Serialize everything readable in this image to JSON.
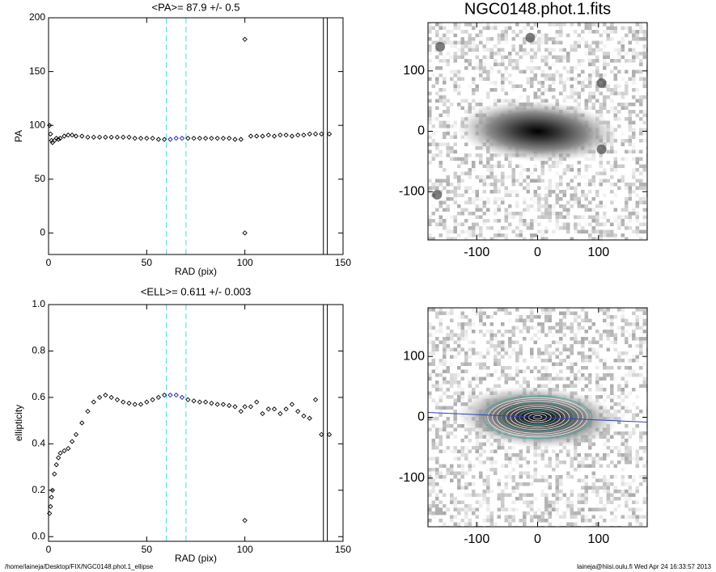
{
  "chart_data": [
    {
      "type": "scatter",
      "title": "<PA>=  87.9 +/-   0.5",
      "x_label": "RAD (pix)",
      "y_label": "PA",
      "x": [
        0.5,
        1,
        1.5,
        2,
        3,
        4,
        5,
        6,
        8,
        10,
        12,
        14,
        17,
        20,
        23,
        26,
        29,
        32,
        35,
        38,
        41,
        44,
        47,
        50,
        53,
        56,
        59,
        62,
        65,
        68,
        71,
        74,
        77,
        80,
        83,
        86,
        89,
        92,
        95,
        98,
        100,
        100,
        103,
        106,
        109,
        112,
        115,
        118,
        121,
        124,
        127,
        130,
        133,
        136,
        139,
        143
      ],
      "values": [
        100,
        92,
        86,
        84,
        86,
        88,
        87,
        88,
        90,
        91,
        91,
        90,
        90,
        89,
        89,
        89,
        89,
        89,
        89,
        89,
        89,
        88,
        88,
        88,
        88,
        87,
        87,
        87,
        88,
        88,
        88,
        88,
        88,
        88,
        88,
        88,
        88,
        88,
        87,
        87,
        180,
        0,
        90,
        90,
        90,
        91,
        90,
        91,
        91,
        90,
        91,
        91,
        92,
        92,
        92,
        92
      ],
      "color": "#000000",
      "highlight_color": "#1a1aa8",
      "range_lines": [
        60,
        70
      ],
      "range_color": "#40e0e0",
      "limit_lines": [
        140,
        142
      ],
      "xlim": [
        0,
        150
      ],
      "xticks": [
        0,
        50,
        100,
        150
      ],
      "ylim": [
        -20,
        200
      ],
      "yticks": [
        0,
        50,
        100,
        150,
        200
      ]
    },
    {
      "type": "scatter",
      "title": "<ELL>= 0.611 +/-  0.003",
      "x_label": "RAD (pix)",
      "y_label": "ellipticity",
      "x": [
        0.5,
        1,
        1.5,
        2,
        3,
        4,
        5,
        6,
        8,
        10,
        12,
        14,
        17,
        20,
        23,
        26,
        29,
        32,
        35,
        38,
        41,
        44,
        47,
        50,
        53,
        56,
        59,
        62,
        65,
        68,
        71,
        74,
        77,
        80,
        83,
        86,
        89,
        92,
        95,
        98,
        100,
        100,
        103,
        106,
        109,
        112,
        115,
        118,
        121,
        124,
        127,
        130,
        133,
        136,
        139,
        143
      ],
      "values": [
        0.1,
        0.13,
        0.17,
        0.2,
        0.27,
        0.31,
        0.34,
        0.36,
        0.37,
        0.38,
        0.41,
        0.44,
        0.49,
        0.54,
        0.58,
        0.6,
        0.61,
        0.6,
        0.59,
        0.58,
        0.575,
        0.57,
        0.57,
        0.58,
        0.59,
        0.6,
        0.61,
        0.61,
        0.61,
        0.6,
        0.59,
        0.585,
        0.58,
        0.58,
        0.575,
        0.57,
        0.57,
        0.565,
        0.56,
        0.54,
        0.07,
        0.56,
        0.56,
        0.58,
        0.53,
        0.55,
        0.55,
        0.53,
        0.55,
        0.57,
        0.54,
        0.52,
        0.51,
        0.59,
        0.44,
        0.44
      ],
      "color": "#000000",
      "highlight_color": "#1a1aa8",
      "range_lines": [
        60,
        70
      ],
      "range_color": "#40e0e0",
      "limit_lines": [
        140,
        142
      ],
      "xlim": [
        0,
        150
      ],
      "xticks": [
        0,
        50,
        100,
        150
      ],
      "ylim": [
        -0.02,
        1.0
      ],
      "yticks": [
        {
          "value": 0,
          "label": "0.0"
        },
        0.2,
        0.4,
        0.6,
        0.8,
        {
          "value": 1,
          "label": "1.0"
        }
      ]
    },
    {
      "type": "image",
      "title": "NGC0148.phot.1.fits",
      "xlim": [
        -180,
        180
      ],
      "xticks": [
        -100,
        0,
        100
      ],
      "ylim": [
        -180,
        180
      ],
      "yticks": [
        -100,
        0,
        100
      ]
    },
    {
      "type": "image",
      "xlim": [
        -180,
        180
      ],
      "xticks": [
        -100,
        0,
        100
      ],
      "ylim": [
        -180,
        180
      ],
      "yticks": [
        -100,
        0,
        100
      ]
    }
  ],
  "footer": {
    "left": "/home/laineja/Desktop/FIX/NGC0148.phot.1_ellipse",
    "right": "laineja@hiisi.oulu.fi  Wed Apr 24 16:33:57 2013"
  }
}
